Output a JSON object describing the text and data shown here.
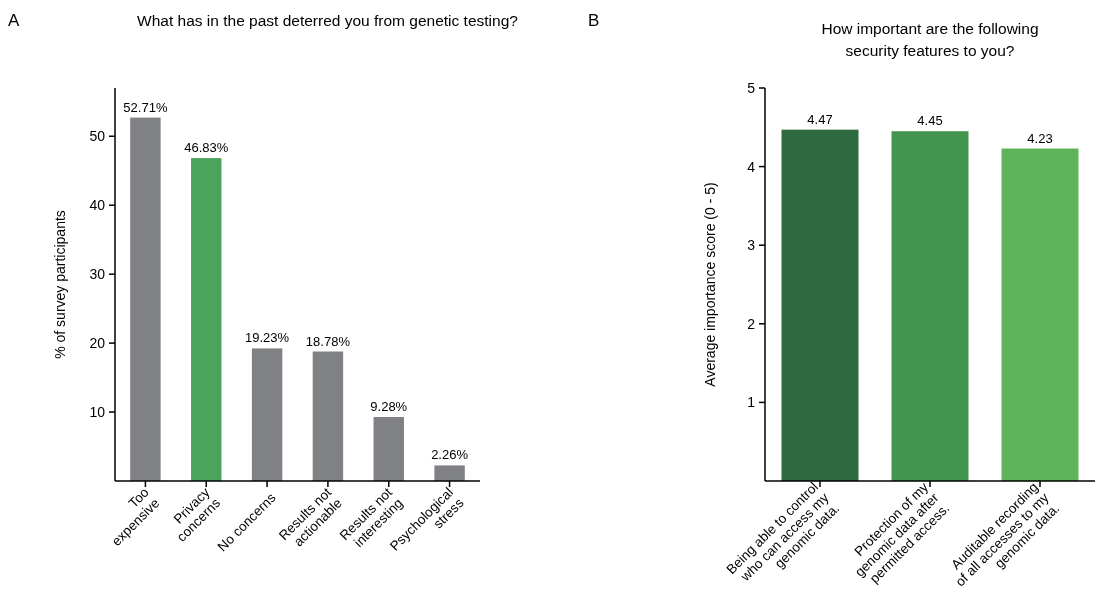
{
  "chart_data": [
    {
      "type": "bar",
      "title": "What has in the past deterred you from genetic testing?",
      "ylabel": "% of survey participants",
      "annotations": [
        "A"
      ],
      "categories": [
        "Too\nexpensive",
        "Privacy\nconcerns",
        "No concerns",
        "Results not\nactionable",
        "Results not\ninteresting",
        "Psychological\nstress"
      ],
      "values": [
        52.71,
        46.83,
        19.23,
        18.78,
        9.28,
        2.26
      ],
      "colors": [
        "#808184",
        "#4aa45c",
        "#808184",
        "#808184",
        "#808184",
        "#808184"
      ],
      "value_labels": [
        "52.71%",
        "46.83%",
        "19.23%",
        "18.78%",
        "9.28%",
        "2.26%"
      ],
      "ylim": [
        0,
        57
      ],
      "yticks": [
        10,
        20,
        30,
        40,
        50
      ]
    },
    {
      "type": "bar",
      "title": "How important are the following\nsecurity features to you?",
      "ylabel": "Average importance score (0 - 5)",
      "annotations": [
        "B"
      ],
      "categories": [
        "Being able to control\nwho can access my\ngenomic data.",
        "Protection of my\ngenomic data after\npermitted access.",
        "Auditable recording\nof all accesses to my\ngenomic data."
      ],
      "values": [
        4.47,
        4.45,
        4.23
      ],
      "colors": [
        "#2d6a3f",
        "#43944e",
        "#5fb35a"
      ],
      "data_labels": true,
      "ylim": [
        0,
        5
      ],
      "yticks": [
        1,
        2,
        3,
        4,
        5
      ]
    }
  ]
}
